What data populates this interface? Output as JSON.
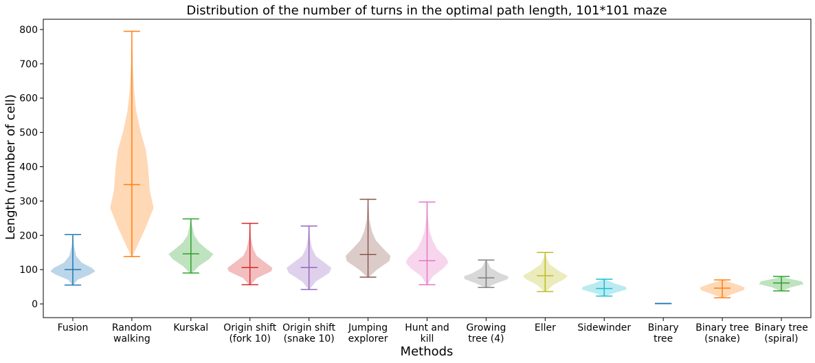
{
  "chart_data": {
    "type": "violin",
    "title": "Distribution of the number of turns in the optimal path length, 101*101 maze",
    "xlabel": "Methods",
    "ylabel": "Length (number of cell)",
    "ylim": [
      -40,
      830
    ],
    "yticks": [
      0,
      100,
      200,
      300,
      400,
      500,
      600,
      700,
      800
    ],
    "grid": false,
    "series": [
      {
        "label_lines": [
          "Fusion"
        ],
        "color": "#1f77b4",
        "min": 55,
        "max": 202,
        "median": 100,
        "density": [
          [
            55,
            0.03
          ],
          [
            70,
            0.2
          ],
          [
            85,
            0.75
          ],
          [
            95,
            1
          ],
          [
            105,
            0.85
          ],
          [
            120,
            0.4
          ],
          [
            140,
            0.15
          ],
          [
            170,
            0.05
          ],
          [
            202,
            0.01
          ]
        ]
      },
      {
        "label_lines": [
          "Random",
          "walking"
        ],
        "color": "#ff7f0e",
        "min": 138,
        "max": 795,
        "median": 348,
        "density": [
          [
            138,
            0.02
          ],
          [
            170,
            0.25
          ],
          [
            220,
            0.6
          ],
          [
            280,
            0.97
          ],
          [
            330,
            0.8
          ],
          [
            400,
            0.72
          ],
          [
            450,
            0.62
          ],
          [
            500,
            0.4
          ],
          [
            560,
            0.2
          ],
          [
            620,
            0.1
          ],
          [
            700,
            0.04
          ],
          [
            795,
            0.01
          ]
        ]
      },
      {
        "label_lines": [
          "Kurskal"
        ],
        "color": "#2ca02c",
        "min": 90,
        "max": 248,
        "median": 146,
        "density": [
          [
            90,
            0.05
          ],
          [
            110,
            0.35
          ],
          [
            130,
            0.8
          ],
          [
            145,
            1
          ],
          [
            160,
            0.7
          ],
          [
            180,
            0.35
          ],
          [
            200,
            0.15
          ],
          [
            230,
            0.05
          ],
          [
            248,
            0.01
          ]
        ]
      },
      {
        "label_lines": [
          "Origin shift",
          "(fork 10)"
        ],
        "color": "#d62728",
        "min": 56,
        "max": 235,
        "median": 106,
        "density": [
          [
            56,
            0.04
          ],
          [
            75,
            0.3
          ],
          [
            95,
            0.95
          ],
          [
            105,
            1
          ],
          [
            120,
            0.7
          ],
          [
            140,
            0.3
          ],
          [
            160,
            0.15
          ],
          [
            190,
            0.05
          ],
          [
            235,
            0.01
          ]
        ]
      },
      {
        "label_lines": [
          "Origin shift",
          "(snake 10)"
        ],
        "color": "#9467bd",
        "min": 42,
        "max": 227,
        "median": 106,
        "density": [
          [
            42,
            0.02
          ],
          [
            65,
            0.3
          ],
          [
            90,
            0.9
          ],
          [
            105,
            1
          ],
          [
            120,
            0.7
          ],
          [
            140,
            0.3
          ],
          [
            165,
            0.12
          ],
          [
            190,
            0.05
          ],
          [
            227,
            0.01
          ]
        ]
      },
      {
        "label_lines": [
          "Jumping",
          "explorer"
        ],
        "color": "#8c564b",
        "min": 78,
        "max": 305,
        "median": 144,
        "density": [
          [
            78,
            0.03
          ],
          [
            100,
            0.4
          ],
          [
            125,
            0.95
          ],
          [
            140,
            1
          ],
          [
            160,
            0.7
          ],
          [
            185,
            0.35
          ],
          [
            210,
            0.18
          ],
          [
            245,
            0.06
          ],
          [
            305,
            0.01
          ]
        ]
      },
      {
        "label_lines": [
          "Hunt and",
          "kill"
        ],
        "color": "#e377c2",
        "min": 56,
        "max": 297,
        "median": 126,
        "density": [
          [
            56,
            0.02
          ],
          [
            80,
            0.25
          ],
          [
            105,
            0.75
          ],
          [
            120,
            0.95
          ],
          [
            135,
            0.85
          ],
          [
            160,
            0.45
          ],
          [
            185,
            0.25
          ],
          [
            210,
            0.12
          ],
          [
            250,
            0.04
          ],
          [
            297,
            0.01
          ]
        ]
      },
      {
        "label_lines": [
          "Growing",
          "tree (4)"
        ],
        "color": "#7f7f7f",
        "min": 48,
        "max": 128,
        "median": 76,
        "density": [
          [
            48,
            0.05
          ],
          [
            60,
            0.45
          ],
          [
            72,
            0.95
          ],
          [
            80,
            1
          ],
          [
            90,
            0.6
          ],
          [
            105,
            0.2
          ],
          [
            128,
            0.02
          ]
        ]
      },
      {
        "label_lines": [
          "Eller"
        ],
        "color": "#bcbd22",
        "min": 36,
        "max": 150,
        "median": 82,
        "density": [
          [
            36,
            0.05
          ],
          [
            55,
            0.35
          ],
          [
            72,
            0.85
          ],
          [
            82,
            1
          ],
          [
            95,
            0.65
          ],
          [
            115,
            0.2
          ],
          [
            135,
            0.06
          ],
          [
            150,
            0.01
          ]
        ]
      },
      {
        "label_lines": [
          "Sidewinder"
        ],
        "color": "#17becf",
        "min": 23,
        "max": 72,
        "median": 45,
        "density": [
          [
            23,
            0.05
          ],
          [
            32,
            0.45
          ],
          [
            42,
            1
          ],
          [
            50,
            0.95
          ],
          [
            60,
            0.45
          ],
          [
            72,
            0.02
          ]
        ]
      },
      {
        "label_lines": [
          "Binary",
          "tree"
        ],
        "color": "#1f77b4",
        "min": 1,
        "max": 1,
        "median": 1,
        "density": []
      },
      {
        "label_lines": [
          "Binary tree",
          "(snake)"
        ],
        "color": "#ff7f0e",
        "min": 18,
        "max": 70,
        "median": 46,
        "density": [
          [
            18,
            0.05
          ],
          [
            30,
            0.5
          ],
          [
            40,
            0.95
          ],
          [
            48,
            1
          ],
          [
            58,
            0.6
          ],
          [
            70,
            0.02
          ]
        ]
      },
      {
        "label_lines": [
          "Binary tree",
          "(spiral)"
        ],
        "color": "#2ca02c",
        "min": 38,
        "max": 80,
        "median": 61,
        "density": [
          [
            38,
            0.05
          ],
          [
            48,
            0.4
          ],
          [
            58,
            1
          ],
          [
            66,
            0.9
          ],
          [
            74,
            0.3
          ],
          [
            80,
            0.02
          ]
        ]
      }
    ]
  }
}
